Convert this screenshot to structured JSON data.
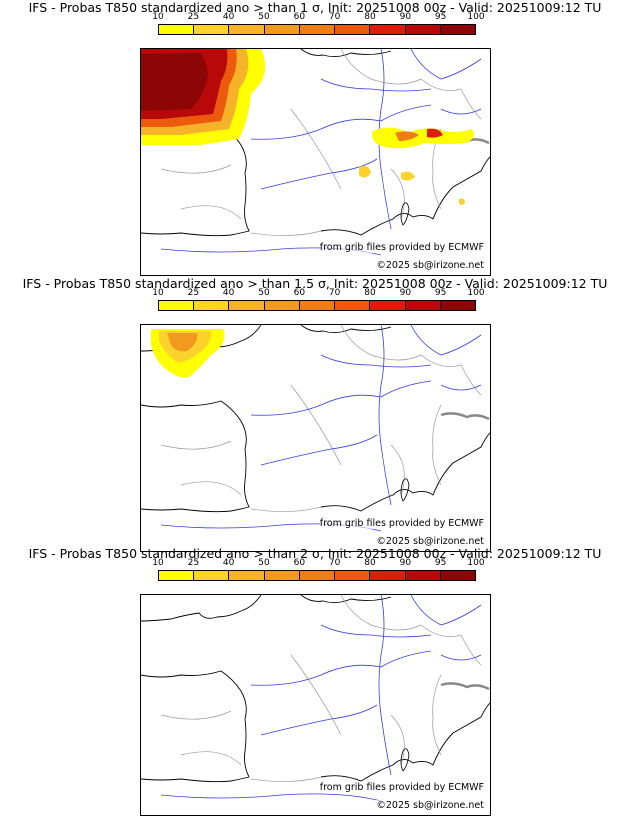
{
  "colorbar": {
    "ticks": [
      "10",
      "25",
      "40",
      "50",
      "60",
      "70",
      "80",
      "90",
      "95",
      "100"
    ],
    "colors": [
      "#ffff00",
      "#fcd22c",
      "#f6b32a",
      "#f29a1f",
      "#ef7d15",
      "#ec5a0e",
      "#dd1c0a",
      "#b80809",
      "#8c0605"
    ]
  },
  "credits": {
    "source": "from grib files provided by ECMWF",
    "copyright": "©2025 sb@irizone.net"
  },
  "panels": [
    {
      "title": "IFS - Probas T850  standardized ano > than 1 σ, Init: 20251008 00z - Valid: 20251009:12 TU"
    },
    {
      "title": "IFS - Probas T850  standardized ano > than 1.5 σ, Init: 20251008 00z - Valid: 20251009:12 TU"
    },
    {
      "title": "IFS - Probas T850  standardized ano > than 2 σ, Init: 20251008 00z - Valid: 20251009:12 TU"
    }
  ]
}
